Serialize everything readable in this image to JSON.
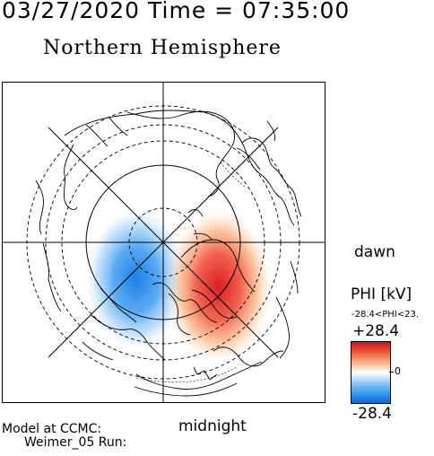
{
  "header": {
    "datetime_line": "03/27/2020 Time = 07:35:00",
    "hemisphere": "Northern Hemisphere"
  },
  "map": {
    "orientation": {
      "dawn": "dawn",
      "midnight": "midnight"
    },
    "projection": "polar",
    "colors": {
      "positive": "#d7191c",
      "negative": "#1f78e0",
      "background": "#ffffff",
      "lines": "#000000"
    }
  },
  "legend": {
    "title": "PHI [kV]",
    "range_text": "-28.4<PHI<23.",
    "max_label": "+28.4",
    "zero_label": "0",
    "min_label": "-28.4",
    "max_value": 28.4,
    "min_value": -28.4
  },
  "credits": {
    "line1": "Model at CCMC:",
    "line2": "Weimer_05 Run:"
  }
}
